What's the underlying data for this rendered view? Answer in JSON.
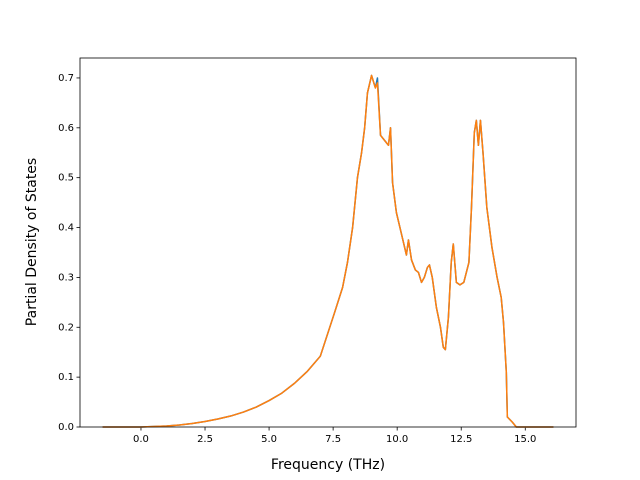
{
  "chart_data": {
    "type": "line",
    "xlabel": "Frequency (THz)",
    "ylabel": "Partial Density of States",
    "x": [
      -1.5,
      -1.0,
      -0.5,
      0.0,
      0.5,
      1.0,
      1.5,
      2.0,
      2.5,
      3.0,
      3.5,
      4.0,
      4.5,
      5.0,
      5.5,
      6.0,
      6.5,
      7.0,
      7.56,
      7.87,
      8.06,
      8.26,
      8.45,
      8.61,
      8.73,
      8.84,
      9.0,
      9.15,
      9.23,
      9.35,
      9.66,
      9.74,
      9.82,
      9.97,
      10.2,
      10.36,
      10.44,
      10.56,
      10.71,
      10.83,
      10.95,
      11.06,
      11.18,
      11.26,
      11.37,
      11.53,
      11.69,
      11.8,
      11.88,
      12.0,
      12.11,
      12.19,
      12.31,
      12.45,
      12.6,
      12.8,
      12.9,
      13.01,
      13.09,
      13.17,
      13.25,
      13.35,
      13.5,
      13.7,
      13.9,
      14.06,
      14.15,
      14.26,
      14.3,
      14.49,
      14.65,
      15.0,
      15.5,
      16.1
    ],
    "series": [
      {
        "color": "#1f77b4",
        "values": [
          0,
          0,
          0,
          0,
          0.001,
          0.002,
          0.004,
          0.007,
          0.011,
          0.016,
          0.022,
          0.03,
          0.04,
          0.053,
          0.068,
          0.088,
          0.112,
          0.142,
          0.23,
          0.28,
          0.33,
          0.4,
          0.5,
          0.55,
          0.6,
          0.67,
          0.705,
          0.68,
          0.7,
          0.585,
          0.565,
          0.6,
          0.49,
          0.43,
          0.38,
          0.345,
          0.375,
          0.335,
          0.315,
          0.31,
          0.29,
          0.3,
          0.32,
          0.325,
          0.3,
          0.24,
          0.2,
          0.16,
          0.155,
          0.22,
          0.33,
          0.367,
          0.29,
          0.285,
          0.29,
          0.33,
          0.44,
          0.59,
          0.615,
          0.565,
          0.615,
          0.55,
          0.44,
          0.36,
          0.3,
          0.26,
          0.21,
          0.11,
          0.02,
          0.01,
          0,
          0,
          0,
          0
        ]
      },
      {
        "color": "#ff7f0e",
        "values": [
          0,
          0,
          0,
          0,
          0.001,
          0.002,
          0.004,
          0.007,
          0.011,
          0.016,
          0.022,
          0.03,
          0.04,
          0.053,
          0.068,
          0.088,
          0.112,
          0.142,
          0.23,
          0.28,
          0.33,
          0.4,
          0.5,
          0.55,
          0.6,
          0.67,
          0.705,
          0.68,
          0.69,
          0.585,
          0.565,
          0.6,
          0.49,
          0.43,
          0.38,
          0.345,
          0.375,
          0.335,
          0.315,
          0.31,
          0.29,
          0.3,
          0.32,
          0.325,
          0.3,
          0.24,
          0.2,
          0.16,
          0.155,
          0.22,
          0.33,
          0.367,
          0.29,
          0.285,
          0.29,
          0.33,
          0.44,
          0.59,
          0.615,
          0.565,
          0.615,
          0.55,
          0.44,
          0.36,
          0.3,
          0.26,
          0.21,
          0.11,
          0.02,
          0.01,
          0,
          0,
          0,
          0
        ]
      }
    ],
    "xlim": [
      -2.38,
      16.98
    ],
    "xticks": [
      {
        "value": 0,
        "label": "0.0"
      },
      2.5,
      {
        "value": 5,
        "label": "5.0"
      },
      7.5,
      {
        "value": 10,
        "label": "10.0"
      },
      12.5,
      {
        "value": 15,
        "label": "15.0"
      }
    ],
    "ylim": [
      0,
      0.74
    ],
    "yticks": [
      {
        "value": 0,
        "label": "0.0"
      },
      0.1,
      0.2,
      0.3,
      0.4,
      0.5,
      0.6,
      0.7
    ]
  }
}
